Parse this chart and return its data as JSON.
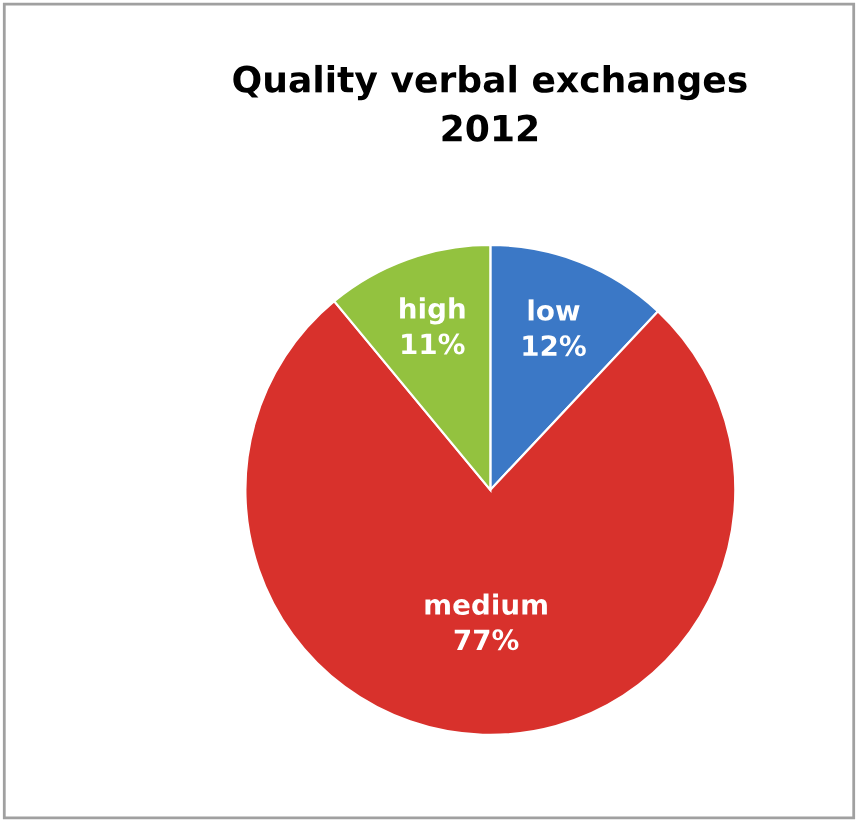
{
  "chart_data": {
    "type": "pie",
    "title": "Quality verbal exchanges\n2012",
    "categories": [
      "low",
      "medium",
      "high"
    ],
    "values": [
      12,
      77,
      11
    ],
    "colors": [
      "#3b78c6",
      "#d8312c",
      "#93c23f"
    ],
    "value_labels": [
      "12%",
      "77%",
      "11%"
    ],
    "legend": false
  }
}
